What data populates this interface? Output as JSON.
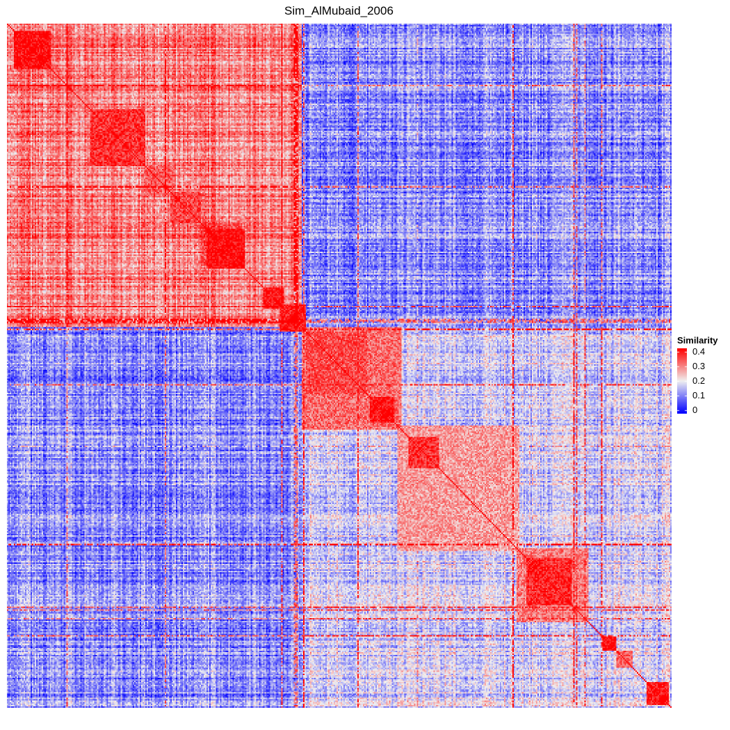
{
  "chart_data": {
    "type": "heatmap",
    "title": "Sim_AlMubaid_2006",
    "xlabel": "",
    "ylabel": "",
    "grid": false,
    "legend": {
      "title": "Similarity",
      "placement": "right",
      "ticks": [
        "0.4",
        "0.3",
        "0.2",
        "0.1",
        "0"
      ],
      "tick_values": [
        0.4,
        0.3,
        0.2,
        0.1,
        0.0
      ],
      "range": [
        0.0,
        0.4
      ]
    },
    "colorscale": [
      {
        "value": 0.0,
        "color": "#0000ff"
      },
      {
        "value": 0.2,
        "color": "#f0f0f0"
      },
      {
        "value": 0.4,
        "color": "#ff0000"
      }
    ],
    "n_terms": 480,
    "diagonal_value": 0.4,
    "group_sizes": [
      213,
      263
    ],
    "group_similarity": {
      "within": [
        [
          0.26,
          0.33
        ],
        [
          0.15,
          0.21
        ]
      ],
      "between": 0.12
    },
    "clusters": [
      {
        "start": 5,
        "end": 32,
        "value": 0.4
      },
      {
        "start": 45,
        "end": 60,
        "value": 0.27
      },
      {
        "start": 60,
        "end": 100,
        "value": 0.36
      },
      {
        "start": 100,
        "end": 120,
        "value": 0.32
      },
      {
        "start": 118,
        "end": 140,
        "value": 0.34
      },
      {
        "start": 140,
        "end": 170,
        "value": 0.33
      },
      {
        "start": 144,
        "end": 172,
        "value": 0.4
      },
      {
        "start": 185,
        "end": 200,
        "value": 0.39
      },
      {
        "start": 197,
        "end": 216,
        "value": 0.38
      },
      {
        "start": 213,
        "end": 285,
        "value": 0.31
      },
      {
        "start": 216,
        "end": 260,
        "value": 0.33
      },
      {
        "start": 262,
        "end": 280,
        "value": 0.39
      },
      {
        "start": 282,
        "end": 370,
        "value": 0.27
      },
      {
        "start": 290,
        "end": 312,
        "value": 0.36
      },
      {
        "start": 368,
        "end": 420,
        "value": 0.3
      },
      {
        "start": 375,
        "end": 408,
        "value": 0.37
      },
      {
        "start": 430,
        "end": 440,
        "value": 0.4
      },
      {
        "start": 440,
        "end": 452,
        "value": 0.32
      },
      {
        "start": 462,
        "end": 478,
        "value": 0.39
      }
    ]
  }
}
